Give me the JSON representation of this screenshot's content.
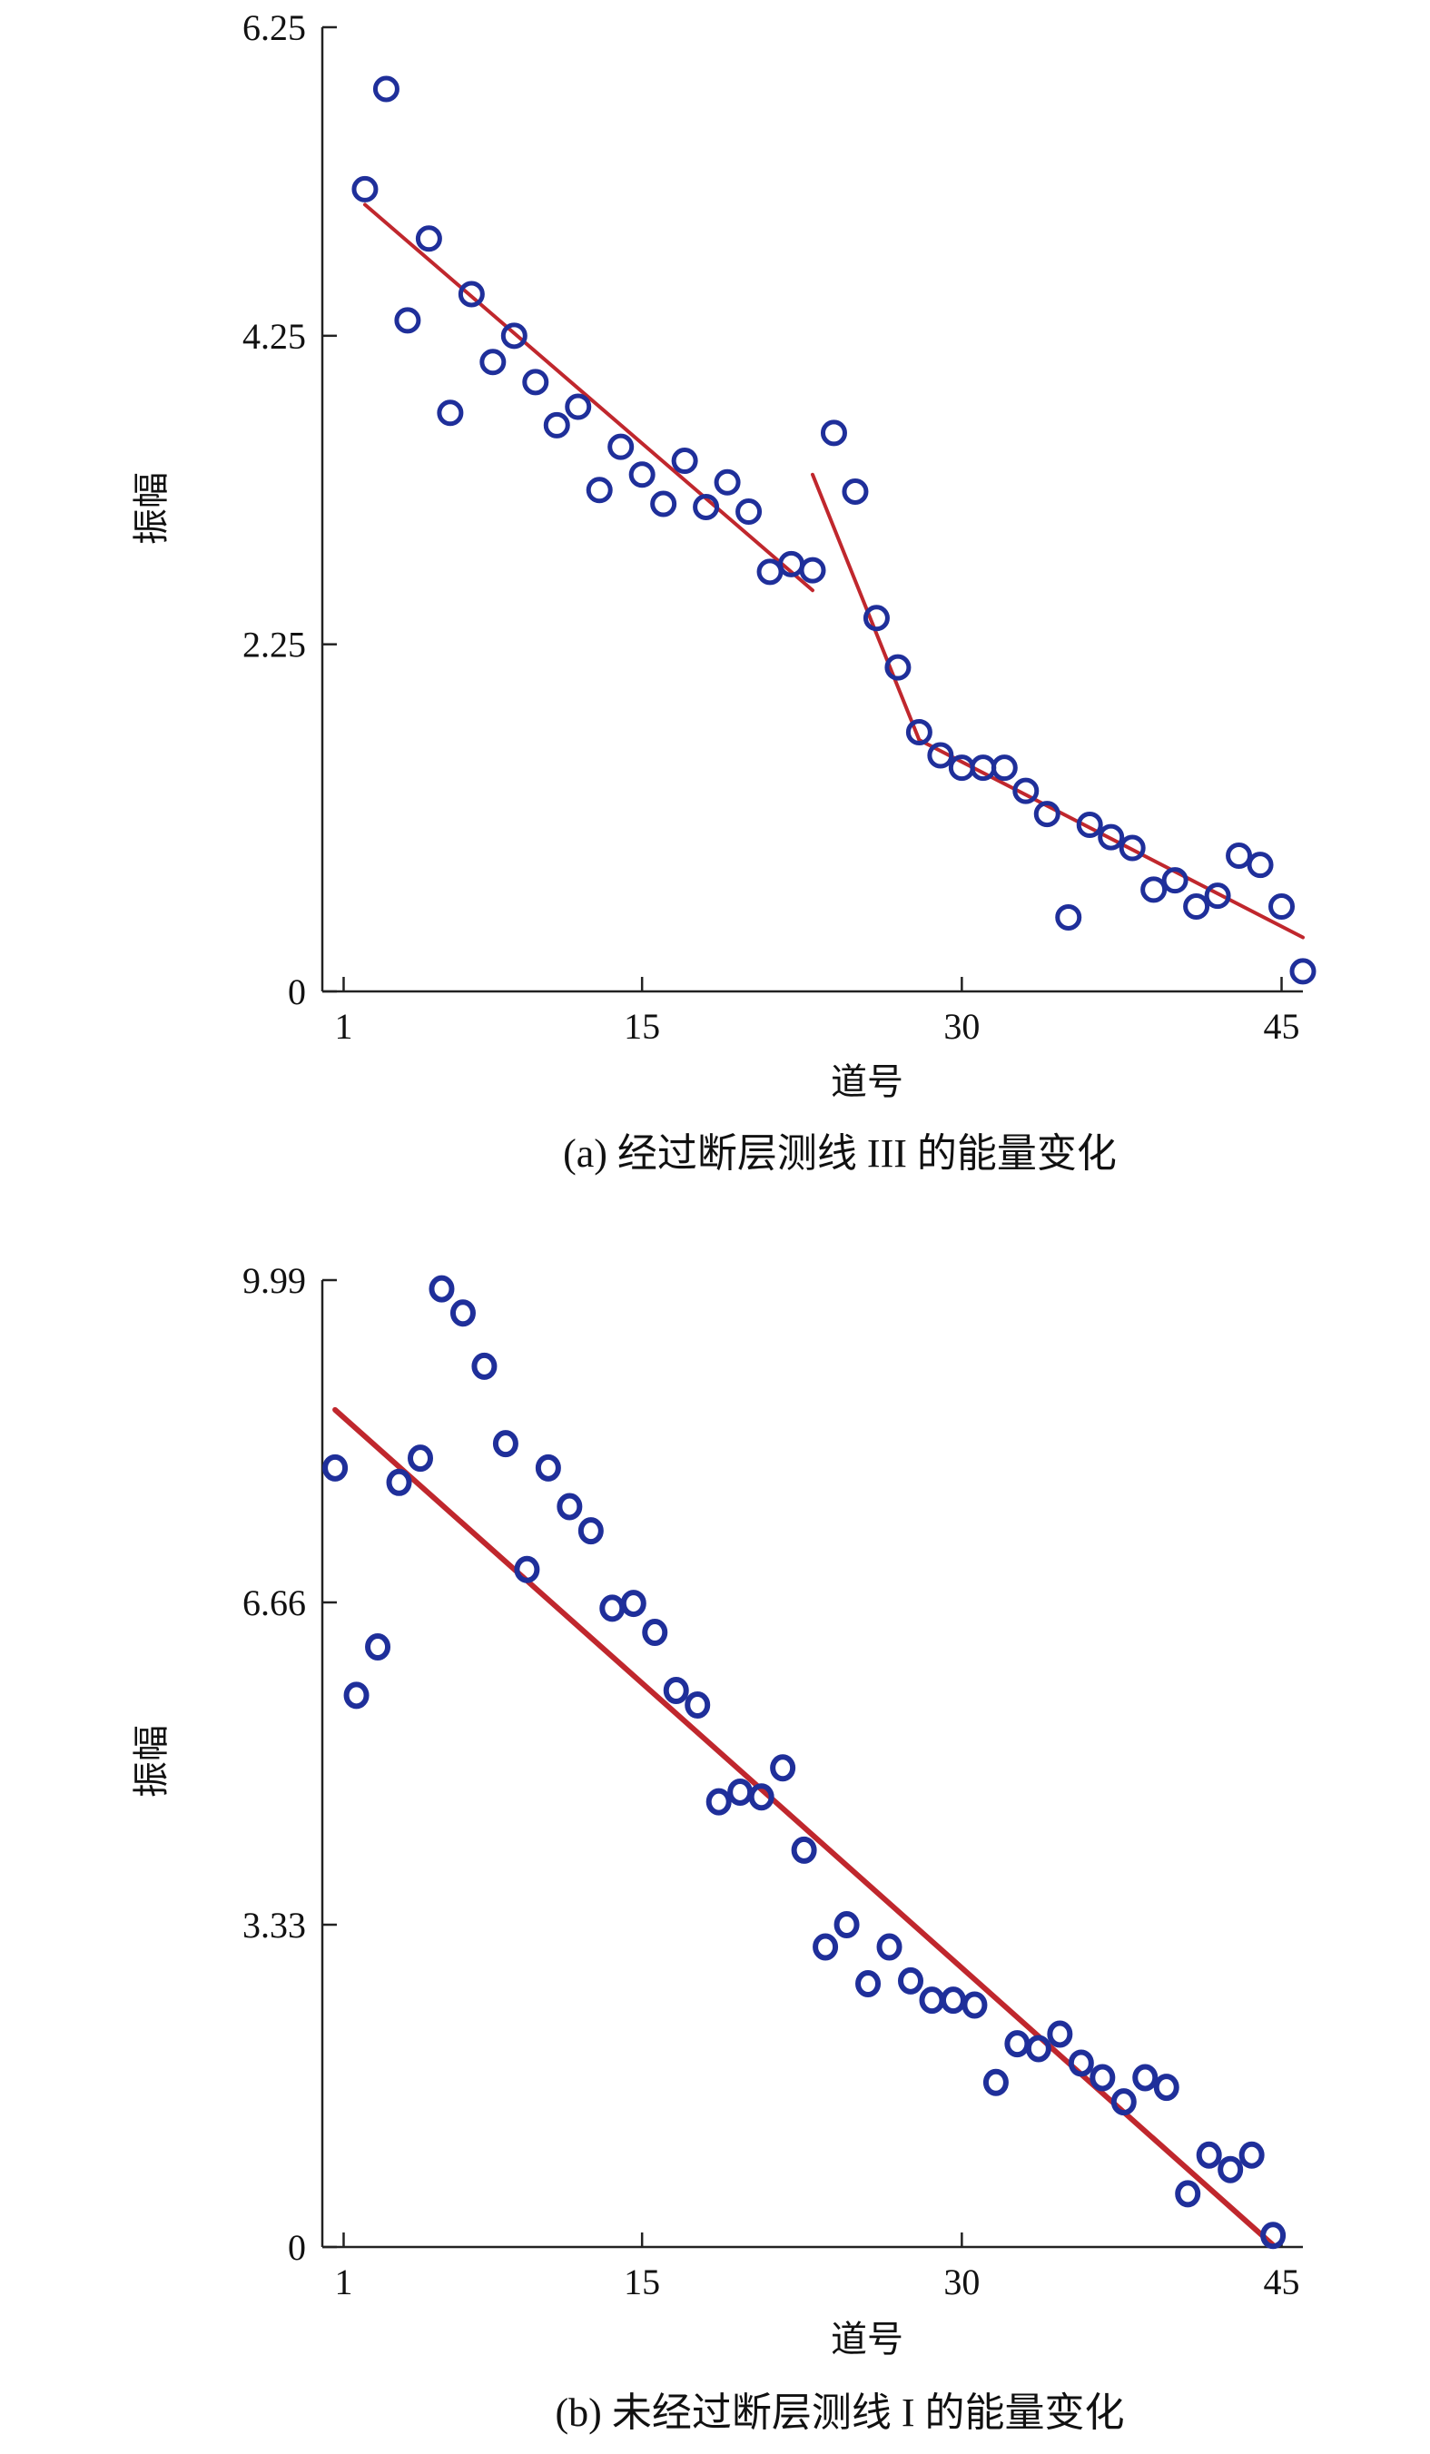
{
  "chart_data": [
    {
      "type": "scatter",
      "caption": "(a) 经过断层测线 III 的能量变化",
      "xlabel": "道号",
      "ylabel": "振幅",
      "xlim": [
        0,
        46
      ],
      "ylim": [
        0,
        6.25
      ],
      "xticks": [
        "1",
        "15",
        "30",
        "45"
      ],
      "xtick_values": [
        1,
        15,
        30,
        45
      ],
      "yticks": [
        "0",
        "2.25",
        "4.25",
        "6.25"
      ],
      "ytick_values": [
        0,
        2.25,
        4.25,
        6.25
      ],
      "grid": false,
      "marker_color": "#1f2f9a",
      "line_color": "#c0272d",
      "points": [
        [
          2,
          5.2
        ],
        [
          3,
          5.85
        ],
        [
          4,
          4.35
        ],
        [
          5,
          4.88
        ],
        [
          6,
          3.75
        ],
        [
          7,
          4.52
        ],
        [
          8,
          4.08
        ],
        [
          9,
          4.25
        ],
        [
          10,
          3.95
        ],
        [
          11,
          3.67
        ],
        [
          12,
          3.79
        ],
        [
          13,
          3.25
        ],
        [
          14,
          3.53
        ],
        [
          15,
          3.35
        ],
        [
          16,
          3.16
        ],
        [
          17,
          3.44
        ],
        [
          18,
          3.14
        ],
        [
          19,
          3.3
        ],
        [
          20,
          3.11
        ],
        [
          21,
          2.72
        ],
        [
          22,
          2.77
        ],
        [
          23,
          2.73
        ],
        [
          24,
          3.62
        ],
        [
          25,
          3.24
        ],
        [
          26,
          2.42
        ],
        [
          27,
          2.1
        ],
        [
          28,
          1.68
        ],
        [
          29,
          1.53
        ],
        [
          30,
          1.45
        ],
        [
          31,
          1.45
        ],
        [
          32,
          1.45
        ],
        [
          33,
          1.3
        ],
        [
          34,
          1.15
        ],
        [
          35,
          0.48
        ],
        [
          36,
          1.08
        ],
        [
          37,
          1.0
        ],
        [
          38,
          0.93
        ],
        [
          39,
          0.66
        ],
        [
          40,
          0.72
        ],
        [
          41,
          0.55
        ],
        [
          42,
          0.62
        ],
        [
          43,
          0.88
        ],
        [
          44,
          0.82
        ],
        [
          45,
          0.55
        ],
        [
          46,
          0.13
        ]
      ],
      "fit_lines": [
        [
          [
            2,
            5.1
          ],
          [
            23,
            2.6
          ]
        ],
        [
          [
            23,
            3.35
          ],
          [
            28,
            1.63
          ]
        ],
        [
          [
            28,
            1.63
          ],
          [
            46,
            0.35
          ]
        ]
      ]
    },
    {
      "type": "scatter",
      "caption": "(b) 未经过断层测线 I 的能量变化",
      "xlabel": "道号",
      "ylabel": "振幅",
      "xlim": [
        0,
        46
      ],
      "ylim": [
        0,
        9.99
      ],
      "xticks": [
        "1",
        "15",
        "30",
        "45"
      ],
      "xtick_values": [
        1,
        15,
        30,
        45
      ],
      "yticks": [
        "0",
        "3.33",
        "6.66",
        "9.99"
      ],
      "ytick_values": [
        0,
        3.33,
        6.66,
        9.99
      ],
      "grid": false,
      "marker_color": "#1f2f9a",
      "line_color": "#c0272d",
      "points": [
        [
          0.6,
          8.05
        ],
        [
          1.6,
          5.7
        ],
        [
          2.6,
          6.2
        ],
        [
          3.6,
          7.9
        ],
        [
          4.6,
          8.15
        ],
        [
          5.6,
          9.9
        ],
        [
          6.6,
          9.65
        ],
        [
          7.6,
          9.1
        ],
        [
          8.6,
          8.3
        ],
        [
          9.6,
          7.0
        ],
        [
          10.6,
          8.05
        ],
        [
          11.6,
          7.65
        ],
        [
          12.6,
          7.4
        ],
        [
          13.6,
          6.6
        ],
        [
          14.6,
          6.65
        ],
        [
          15.6,
          6.35
        ],
        [
          16.6,
          5.75
        ],
        [
          17.6,
          5.6
        ],
        [
          18.6,
          4.6
        ],
        [
          19.6,
          4.7
        ],
        [
          20.6,
          4.65
        ],
        [
          21.6,
          4.95
        ],
        [
          22.6,
          4.1
        ],
        [
          23.6,
          3.1
        ],
        [
          24.6,
          3.33
        ],
        [
          25.6,
          2.72
        ],
        [
          26.6,
          3.1
        ],
        [
          27.6,
          2.75
        ],
        [
          28.6,
          2.55
        ],
        [
          29.6,
          2.55
        ],
        [
          30.6,
          2.5
        ],
        [
          31.6,
          1.7
        ],
        [
          32.6,
          2.1
        ],
        [
          33.6,
          2.05
        ],
        [
          34.6,
          2.2
        ],
        [
          35.6,
          1.9
        ],
        [
          36.6,
          1.75
        ],
        [
          37.6,
          1.5
        ],
        [
          38.6,
          1.75
        ],
        [
          39.6,
          1.65
        ],
        [
          40.6,
          0.55
        ],
        [
          41.6,
          0.95
        ],
        [
          42.6,
          0.8
        ],
        [
          43.6,
          0.95
        ],
        [
          44.6,
          0.12
        ]
      ],
      "fit_lines": [
        [
          [
            0.6,
            8.65
          ],
          [
            44.6,
            0.02
          ]
        ]
      ]
    }
  ]
}
